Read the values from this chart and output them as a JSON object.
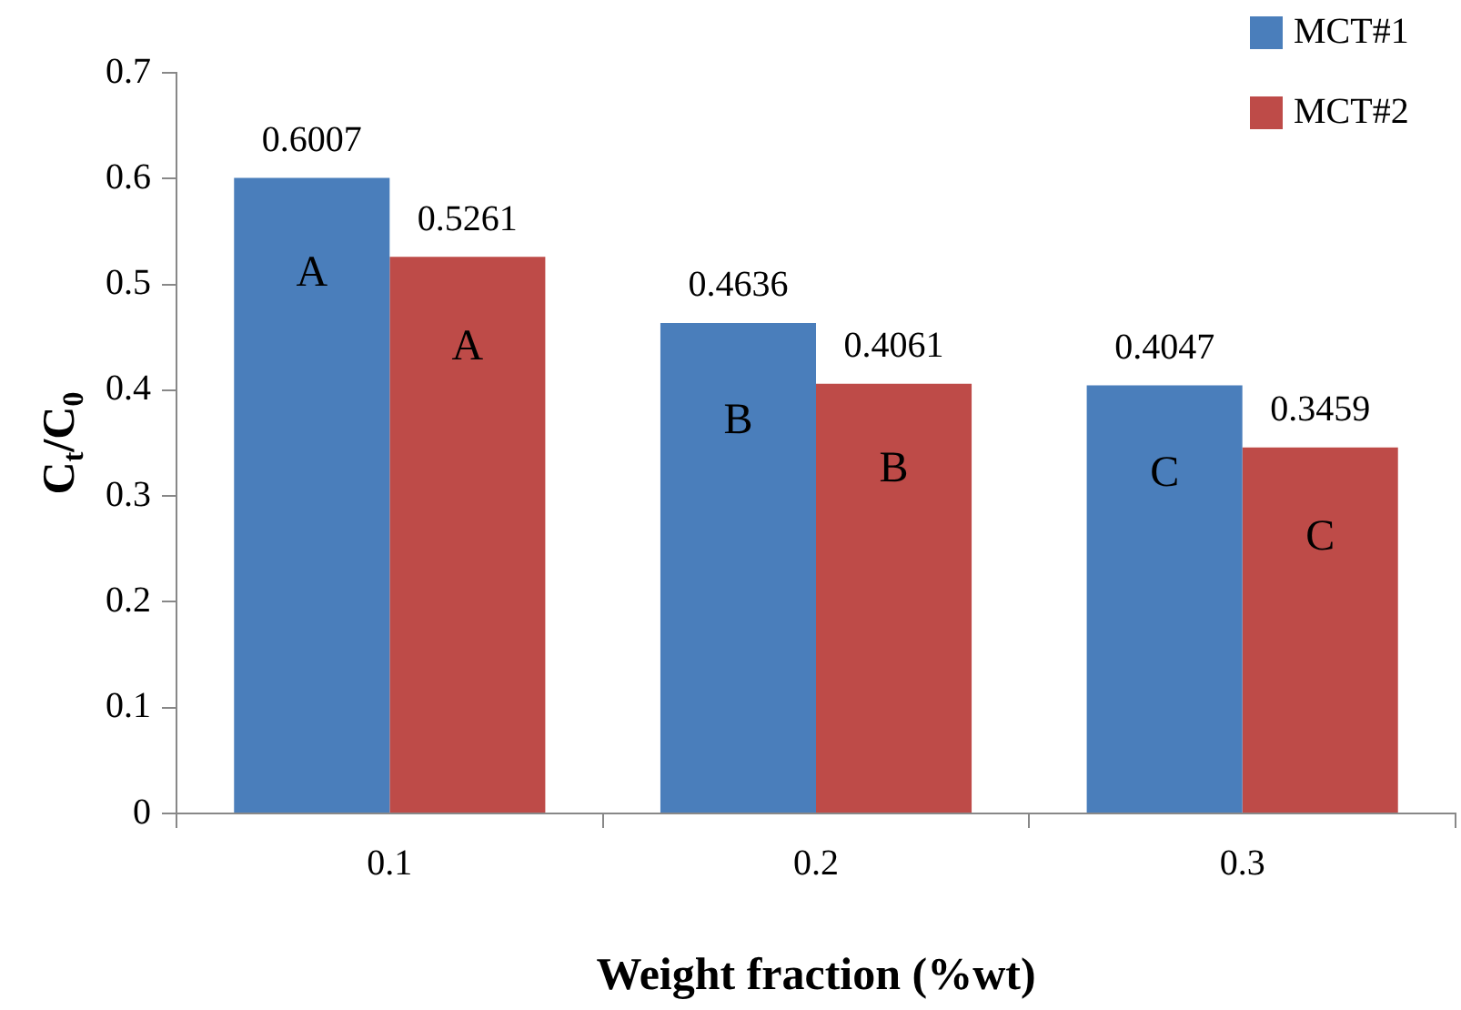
{
  "chart_data": {
    "type": "bar",
    "xlabel": "Weight fraction (%wt)",
    "ylabel": "C$_{t}$/C$_{0}$",
    "categories": [
      "0.1",
      "0.2",
      "0.3"
    ],
    "series": [
      {
        "name": "MCT#1",
        "color": "#4a7ebb",
        "values": [
          0.6007,
          0.4636,
          0.4047
        ]
      },
      {
        "name": "MCT#2",
        "color": "#be4b48",
        "values": [
          0.5261,
          0.4061,
          0.3459
        ]
      }
    ],
    "ylim": [
      0,
      0.7
    ],
    "yticks": [
      0,
      0.1,
      0.2,
      0.3,
      0.4,
      0.5,
      0.6,
      0.7
    ],
    "grid": false,
    "legend": "top right",
    "data_labels": true,
    "annotations": [
      {
        "text": "A",
        "x": "0.1",
        "y": 0.51
      },
      {
        "text": "A",
        "x": "0.1",
        "y": 0.44
      },
      {
        "text": "B",
        "x": "0.2",
        "y": 0.37
      },
      {
        "text": "B",
        "x": "0.2",
        "y": 0.325
      },
      {
        "text": "C",
        "x": "0.3",
        "y": 0.32
      },
      {
        "text": "C",
        "x": "0.3",
        "y": 0.26
      }
    ]
  }
}
